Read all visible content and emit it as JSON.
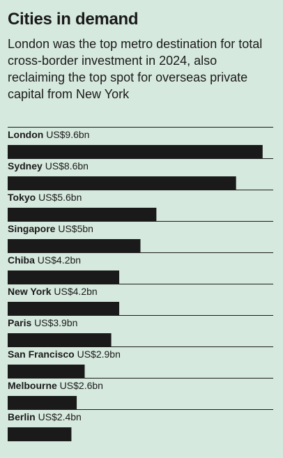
{
  "header": {
    "title": "Cities in demand",
    "subtitle": "London was the top metro destination for total cross-border investment in 2024, also reclaiming the top spot for overseas private capital from New York"
  },
  "colors": {
    "background": "#d6e9de",
    "bar": "#1a1a1a",
    "rule": "#1a1a1a"
  },
  "chart_data": {
    "type": "bar",
    "orientation": "horizontal",
    "title": "Cities in demand",
    "subtitle": "London was the top metro destination for total cross-border investment in 2024, also reclaiming the top spot for overseas private capital from New York",
    "categories": [
      "London",
      "Sydney",
      "Tokyo",
      "Singapore",
      "Chiba",
      "New York",
      "Paris",
      "San Francisco",
      "Melbourne",
      "Berlin"
    ],
    "values": [
      9.6,
      8.6,
      5.6,
      5,
      4.2,
      4.2,
      3.9,
      2.9,
      2.6,
      2.4
    ],
    "value_labels": [
      "US$9.6bn",
      "US$8.6bn",
      "US$5.6bn",
      "US$5bn",
      "US$4.2bn",
      "US$4.2bn",
      "US$3.9bn",
      "US$2.9bn",
      "US$2.6bn",
      "US$2.4bn"
    ],
    "xlim": [
      0,
      10
    ],
    "grid": false,
    "legend": "none"
  }
}
